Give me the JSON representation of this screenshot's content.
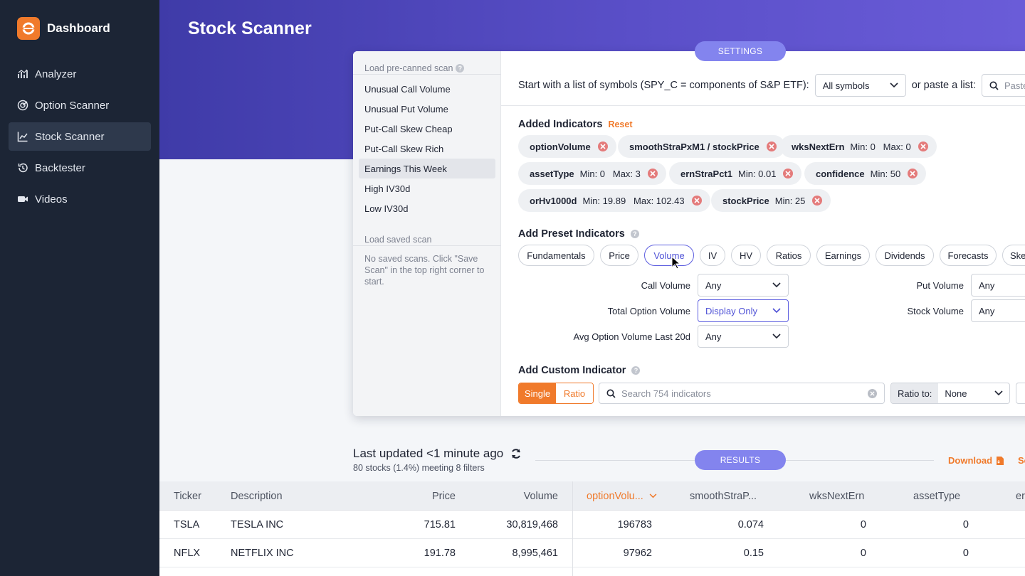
{
  "sidebar": {
    "brand": "Dashboard",
    "items": [
      {
        "label": "Analyzer",
        "icon": "bar-chart-icon"
      },
      {
        "label": "Option Scanner",
        "icon": "radar-icon"
      },
      {
        "label": "Stock Scanner",
        "icon": "line-chart-icon",
        "active": true
      },
      {
        "label": "Backtester",
        "icon": "history-icon"
      },
      {
        "label": "Videos",
        "icon": "video-camera-icon"
      }
    ]
  },
  "page": {
    "title": "Stock Scanner"
  },
  "settings": {
    "pill": "SETTINGS",
    "precanned_header": "Load pre-canned scan",
    "precanned": [
      "Unusual Call Volume",
      "Unusual Put Volume",
      "Put-Call Skew Cheap",
      "Put-Call Skew Rich",
      "Earnings This Week",
      "High IV30d",
      "Low IV30d"
    ],
    "selected_precanned": "Earnings This Week",
    "saved_header": "Load saved scan",
    "saved_note": "No saved scans. Click \"Save Scan\" in the top right corner to start.",
    "symbols_label": "Start with a list of symbols (SPY_C = components of S&P ETF):",
    "symbols_value": "All symbols",
    "paste_label": "or paste a list:",
    "paste_placeholder": "Paste",
    "added_title": "Added Indicators",
    "reset": "Reset",
    "indicators": [
      {
        "name": "optionVolume",
        "meta": ""
      },
      {
        "name": "smoothStraPxM1 / stockPrice",
        "meta": ""
      },
      {
        "name": "wksNextErn",
        "meta": "Min: 0   Max: 0"
      },
      {
        "name": "assetType",
        "meta": "Min: 0   Max: 3"
      },
      {
        "name": "ernStraPct1",
        "meta": "Min: 0.01"
      },
      {
        "name": "confidence",
        "meta": "Min: 50"
      },
      {
        "name": "orHv1000d",
        "meta": "Min: 19.89   Max: 102.43"
      },
      {
        "name": "stockPrice",
        "meta": "Min: 25"
      }
    ],
    "preset_title": "Add Preset Indicators",
    "preset_categories": [
      "Fundamentals",
      "Price",
      "Volume",
      "IV",
      "HV",
      "Ratios",
      "Earnings",
      "Dividends",
      "Forecasts",
      "Ske"
    ],
    "active_category": "Volume",
    "volume_fields": [
      {
        "label": "Call Volume",
        "value": "Any"
      },
      {
        "label": "Total Option Volume",
        "value": "Display Only"
      },
      {
        "label": "Avg Option Volume Last 20d",
        "value": "Any"
      },
      {
        "label": "Put Volume",
        "value": "Any"
      },
      {
        "label": "Stock Volume",
        "value": "Any"
      }
    ],
    "custom_title": "Add Custom Indicator",
    "mode_single": "Single",
    "mode_ratio": "Ratio",
    "search_placeholder": "Search 754 indicators",
    "ratio_to_label": "Ratio to:",
    "ratio_to_value": "None"
  },
  "results": {
    "pill": "RESULTS",
    "last_updated": "Last updated <1 minute ago",
    "summary": "80 stocks (1.4%) meeting 8 filters",
    "download": "Download",
    "extra_action": "Se",
    "columns": [
      "Ticker",
      "Description",
      "Price",
      "Volume",
      "optionVolu...",
      "smoothStraP...",
      "wksNextErn",
      "assetType",
      "er"
    ],
    "sorted_column": "optionVolu...",
    "rows": [
      [
        "TSLA",
        "TESLA INC",
        "715.81",
        "30,819,468",
        "196783",
        "0.074",
        "0",
        "0"
      ],
      [
        "NFLX",
        "NETFLIX INC",
        "191.78",
        "8,995,461",
        "97962",
        "0.15",
        "0",
        "0"
      ]
    ]
  },
  "colors": {
    "accent_orange": "#f07a2b",
    "accent_purple": "#8384ee",
    "sidebar_bg": "#1c2535"
  }
}
